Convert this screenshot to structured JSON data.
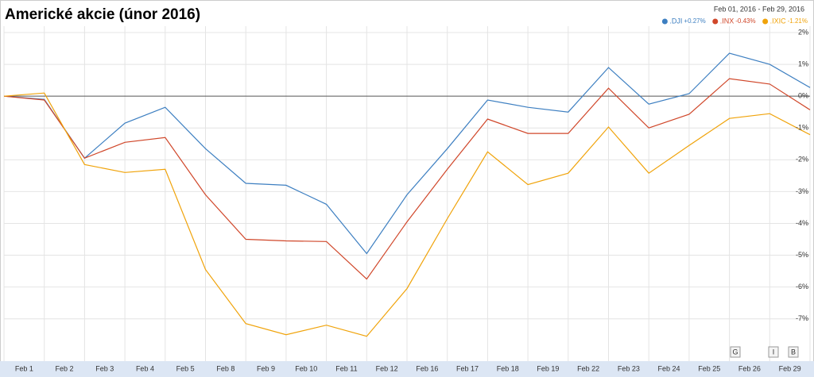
{
  "chart_data": {
    "type": "line",
    "title": "Americké akcie (únor 2016)",
    "date_range": "Feb 01, 2016  -  Feb 29, 2016",
    "categories": [
      null,
      "Feb 1",
      "Feb 2",
      "Feb 3",
      "Feb 4",
      "Feb 5",
      "Feb 8",
      "Feb 9",
      "Feb 10",
      "Feb 11",
      "Feb 12",
      "Feb 16",
      "Feb 17",
      "Feb 18",
      "Feb 19",
      "Feb 22",
      "Feb 23",
      "Feb 24",
      "Feb 25",
      "Feb 26",
      "Feb 29"
    ],
    "series": [
      {
        "name": ".DJI",
        "change": "+0.27%",
        "color": "#3d7fc1",
        "values": [
          0,
          -0.1,
          -1.95,
          -0.85,
          -0.35,
          -1.65,
          -2.74,
          -2.8,
          -3.4,
          -4.95,
          -3.1,
          -1.65,
          -0.12,
          -0.35,
          -0.5,
          0.9,
          -0.25,
          0.08,
          1.35,
          1.0,
          0.27
        ]
      },
      {
        "name": ".INX",
        "change": "-0.43%",
        "color": "#d0472a",
        "values": [
          0,
          -0.12,
          -1.95,
          -1.45,
          -1.3,
          -3.1,
          -4.5,
          -4.55,
          -4.57,
          -5.75,
          -3.95,
          -2.3,
          -0.72,
          -1.17,
          -1.17,
          0.25,
          -1.0,
          -0.57,
          0.55,
          0.38,
          -0.43
        ]
      },
      {
        "name": ".IXIC",
        "change": "-1.21%",
        "color": "#f0a30a",
        "values": [
          0,
          0.1,
          -2.15,
          -2.4,
          -2.3,
          -5.45,
          -7.15,
          -7.5,
          -7.2,
          -7.55,
          -6.05,
          -3.85,
          -1.75,
          -2.78,
          -2.42,
          -0.97,
          -2.42,
          -1.55,
          -0.7,
          -0.55,
          -1.21
        ]
      }
    ],
    "ylim": [
      -8.33,
      2.2
    ],
    "yticks": [
      {
        "value": 2,
        "label": "2%"
      },
      {
        "value": 1,
        "label": "1%"
      },
      {
        "value": 0,
        "label": "0%"
      },
      {
        "value": -1,
        "label": "-1%"
      },
      {
        "value": -2,
        "label": "-2%"
      },
      {
        "value": -3,
        "label": "-3%"
      },
      {
        "value": -4,
        "label": "-4%"
      },
      {
        "value": -5,
        "label": "-5%"
      },
      {
        "value": -6,
        "label": "-6%"
      },
      {
        "value": -7,
        "label": "-7%"
      }
    ],
    "grid": true,
    "controls": [
      "G",
      "I",
      "B"
    ]
  }
}
